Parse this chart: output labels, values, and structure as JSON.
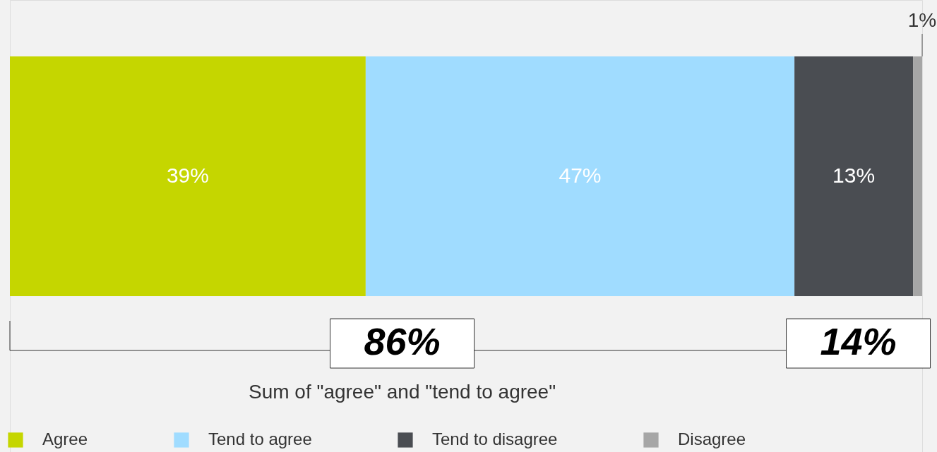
{
  "chart_data": {
    "type": "bar",
    "orientation": "horizontal",
    "stacked": true,
    "categories": [
      null
    ],
    "xlim": [
      0,
      100
    ],
    "tick_labels": false,
    "legend": "bottom",
    "series": [
      {
        "name": "Agree",
        "color": "#c5d600",
        "values": [
          39
        ],
        "value_labels": [
          "39%"
        ]
      },
      {
        "name": "Tend to agree",
        "color": "#a0dcff",
        "values": [
          47
        ],
        "value_labels": [
          "47%"
        ]
      },
      {
        "name": "Tend to disagree",
        "color": "#4a4d52",
        "values": [
          13
        ],
        "value_labels": [
          "13%"
        ]
      },
      {
        "name": "Disagree",
        "color": "#a6a6a6",
        "values": [
          1
        ],
        "value_labels": [
          "1%"
        ]
      }
    ],
    "annotations": [
      "86%",
      "14%",
      "Sum of \"agree\" and \"tend to agree\""
    ]
  }
}
